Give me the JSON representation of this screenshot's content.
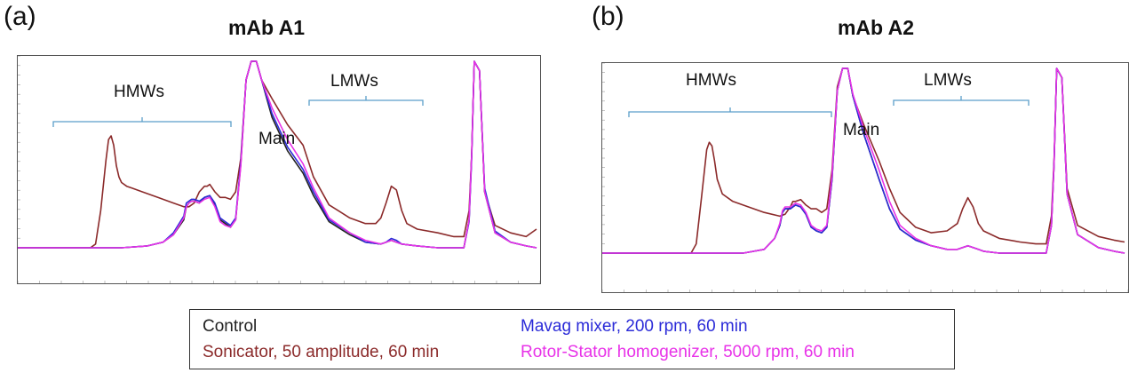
{
  "colors": {
    "control": "#222222",
    "sonicator": "#8b2a2a",
    "mavag": "#2b2bd8",
    "rotor": "#e832e8",
    "bracket": "#5a9ec9"
  },
  "legend": {
    "control": "Control",
    "mavag": "Mavag mixer, 200 rpm, 60 min",
    "sonicator": "Sonicator, 50 amplitude, 60 min",
    "rotor": "Rotor-Stator homogenizer, 5000 rpm, 60 min"
  },
  "chart_data": [
    {
      "type": "line",
      "panel": "(a)",
      "title": "mAb A1",
      "annotations": {
        "hmw": "HMWs",
        "main": "Main",
        "lmw": "LMWs"
      },
      "xlim": [
        0,
        100
      ],
      "ylim": [
        0,
        100
      ],
      "series": [
        {
          "key": "sonicator",
          "x": [
            0,
            14,
            15,
            16,
            17,
            17.5,
            18,
            18.5,
            19,
            19.5,
            20,
            21,
            22,
            24,
            27,
            30,
            32,
            33,
            34,
            34.5,
            35,
            36,
            36.5,
            37,
            38,
            39,
            40,
            41,
            42,
            43,
            44,
            45,
            46,
            47,
            49,
            52,
            55,
            57,
            60,
            64,
            67,
            69,
            70,
            71,
            72,
            73,
            74,
            75,
            77,
            81,
            84,
            86,
            87,
            87.5,
            88,
            89,
            90,
            92,
            95,
            98,
            100
          ],
          "y": [
            0,
            0,
            2,
            20,
            47,
            58,
            60,
            55,
            44,
            38,
            35,
            33,
            32,
            30,
            27,
            24,
            22,
            22,
            24,
            27,
            30,
            33,
            33,
            34,
            30,
            27,
            27,
            26,
            30,
            48,
            90,
            100,
            100,
            90,
            80,
            66,
            55,
            38,
            23,
            16,
            13,
            13,
            16,
            24,
            33,
            31,
            20,
            13,
            10,
            8,
            6,
            6,
            20,
            50,
            100,
            95,
            30,
            12,
            8,
            6,
            10
          ]
        },
        {
          "key": "control",
          "x": [
            0,
            14,
            20,
            25,
            28,
            30,
            32,
            32.5,
            33,
            33.5,
            34,
            35,
            36,
            37,
            38,
            39,
            40,
            41,
            42,
            43,
            44,
            45,
            46,
            47,
            49,
            52,
            55,
            57,
            60,
            64,
            67,
            70,
            71,
            72,
            73,
            74,
            77,
            81,
            84,
            86,
            87,
            87.5,
            88,
            89,
            90,
            92,
            95,
            98,
            100
          ],
          "y": [
            0,
            0,
            0,
            1,
            3,
            7,
            15,
            22,
            24,
            25,
            25,
            24,
            27,
            28,
            23,
            15,
            13,
            11,
            15,
            45,
            90,
            100,
            100,
            90,
            70,
            52,
            40,
            28,
            14,
            7,
            3,
            2,
            3,
            4,
            3,
            2,
            1,
            0,
            0,
            0,
            15,
            50,
            100,
            95,
            30,
            8,
            3,
            1,
            0
          ]
        },
        {
          "key": "mavag",
          "x": [
            0,
            14,
            20,
            25,
            28,
            30,
            32,
            32.5,
            33,
            33.5,
            34,
            35,
            36,
            37,
            38,
            39,
            40,
            41,
            42,
            43,
            44,
            45,
            46,
            47,
            49,
            52,
            55,
            57,
            60,
            64,
            67,
            70,
            71,
            72,
            73,
            74,
            77,
            81,
            84,
            86,
            87,
            87.5,
            88,
            89,
            90,
            92,
            95,
            98,
            100
          ],
          "y": [
            0,
            0,
            0,
            1,
            3,
            8,
            17,
            24,
            25,
            26,
            26,
            25,
            27,
            28,
            24,
            16,
            14,
            12,
            16,
            46,
            90,
            100,
            100,
            90,
            72,
            54,
            42,
            30,
            15,
            8,
            3,
            2,
            3,
            5,
            4,
            2,
            1,
            0,
            0,
            0,
            14,
            48,
            100,
            95,
            32,
            9,
            3,
            1,
            0
          ]
        },
        {
          "key": "rotor",
          "x": [
            0,
            14,
            20,
            25,
            28,
            30,
            32,
            32.5,
            33,
            33.5,
            34,
            35,
            36,
            37,
            38,
            39,
            40,
            41,
            42,
            43,
            44,
            45,
            46,
            47,
            49,
            52,
            55,
            57,
            60,
            64,
            67,
            70,
            71,
            72,
            73,
            74,
            77,
            81,
            84,
            86,
            87,
            87.5,
            88,
            89,
            90,
            92,
            95,
            98,
            100
          ],
          "y": [
            0,
            0,
            0,
            1,
            3,
            7,
            16,
            22,
            24,
            25,
            25,
            24,
            26,
            27,
            22,
            14,
            12,
            11,
            15,
            44,
            90,
            100,
            100,
            90,
            75,
            58,
            45,
            32,
            16,
            8,
            4,
            2,
            3,
            4,
            3,
            2,
            1,
            0,
            0,
            0,
            15,
            50,
            100,
            95,
            30,
            8,
            3,
            1,
            0
          ]
        }
      ]
    },
    {
      "type": "line",
      "panel": "(b)",
      "title": "mAb A2",
      "annotations": {
        "hmw": "HMWs",
        "main": "Main",
        "lmw": "LMWs"
      },
      "xlim": [
        0,
        100
      ],
      "ylim": [
        0,
        100
      ],
      "series": [
        {
          "key": "sonicator",
          "x": [
            0,
            17,
            18,
            19,
            20,
            20.5,
            21,
            21.5,
            22,
            23,
            25,
            28,
            31,
            34,
            35,
            36,
            36.5,
            37,
            38,
            39,
            40,
            41,
            42,
            43,
            44,
            45,
            46,
            47,
            48,
            50,
            53,
            55,
            57,
            60,
            63,
            66,
            68,
            69,
            70,
            71,
            72,
            73,
            76,
            80,
            83,
            85,
            86,
            86.5,
            87,
            88,
            89,
            91,
            95,
            98,
            100
          ],
          "y": [
            0,
            0,
            5,
            30,
            56,
            60,
            58,
            50,
            40,
            32,
            28,
            25,
            22,
            20,
            21,
            25,
            28,
            28,
            29,
            26,
            24,
            24,
            22,
            24,
            45,
            90,
            100,
            100,
            85,
            70,
            50,
            35,
            22,
            14,
            11,
            12,
            16,
            24,
            30,
            25,
            16,
            12,
            8,
            6,
            5,
            5,
            20,
            50,
            100,
            95,
            35,
            15,
            9,
            7,
            6
          ]
        },
        {
          "key": "control",
          "x": [
            0,
            17,
            22,
            27,
            31,
            33,
            34,
            34.5,
            35,
            36,
            36.5,
            37,
            38,
            39,
            40,
            41,
            42,
            43,
            44,
            45,
            46,
            47,
            48,
            50,
            53,
            55,
            57,
            60,
            63,
            66,
            68,
            69,
            70,
            71,
            72,
            73,
            76,
            80,
            83,
            85,
            86,
            86.5,
            87,
            88,
            89,
            91,
            95,
            98,
            100
          ],
          "y": [
            0,
            0,
            0,
            0,
            2,
            8,
            15,
            22,
            24,
            24,
            25,
            26,
            25,
            21,
            14,
            12,
            11,
            14,
            40,
            88,
            100,
            100,
            85,
            65,
            40,
            24,
            13,
            7,
            4,
            2,
            2,
            3,
            4,
            3,
            2,
            1,
            0,
            0,
            0,
            0,
            15,
            48,
            100,
            95,
            32,
            10,
            3,
            1,
            0
          ]
        },
        {
          "key": "mavag",
          "x": [
            0,
            17,
            22,
            27,
            31,
            33,
            34,
            34.5,
            35,
            36,
            36.5,
            37,
            38,
            39,
            40,
            41,
            42,
            43,
            44,
            45,
            46,
            47,
            48,
            50,
            53,
            55,
            57,
            60,
            63,
            66,
            68,
            69,
            70,
            71,
            72,
            73,
            76,
            80,
            83,
            85,
            86,
            86.5,
            87,
            88,
            89,
            91,
            95,
            98,
            100
          ],
          "y": [
            0,
            0,
            0,
            0,
            2,
            8,
            15,
            22,
            24,
            24,
            25,
            26,
            25,
            21,
            14,
            12,
            11,
            14,
            40,
            88,
            100,
            100,
            85,
            65,
            40,
            24,
            13,
            7,
            4,
            2,
            2,
            3,
            4,
            3,
            2,
            1,
            0,
            0,
            0,
            0,
            15,
            48,
            100,
            95,
            32,
            10,
            3,
            1,
            0
          ]
        },
        {
          "key": "rotor",
          "x": [
            0,
            17,
            22,
            27,
            31,
            33,
            34,
            34.5,
            35,
            36,
            36.5,
            37,
            38,
            39,
            40,
            41,
            42,
            43,
            44,
            45,
            46,
            47,
            48,
            50,
            53,
            55,
            57,
            60,
            63,
            66,
            68,
            69,
            70,
            71,
            72,
            73,
            76,
            80,
            83,
            85,
            86,
            86.5,
            87,
            88,
            89,
            91,
            95,
            98,
            100
          ],
          "y": [
            0,
            0,
            0,
            0,
            2,
            8,
            16,
            23,
            25,
            25,
            26,
            27,
            26,
            22,
            15,
            13,
            12,
            15,
            42,
            88,
            100,
            100,
            86,
            68,
            45,
            28,
            15,
            8,
            4,
            2,
            2,
            3,
            4,
            3,
            2,
            1,
            0,
            0,
            0,
            0,
            15,
            48,
            100,
            95,
            32,
            10,
            3,
            1,
            0
          ]
        }
      ]
    }
  ]
}
